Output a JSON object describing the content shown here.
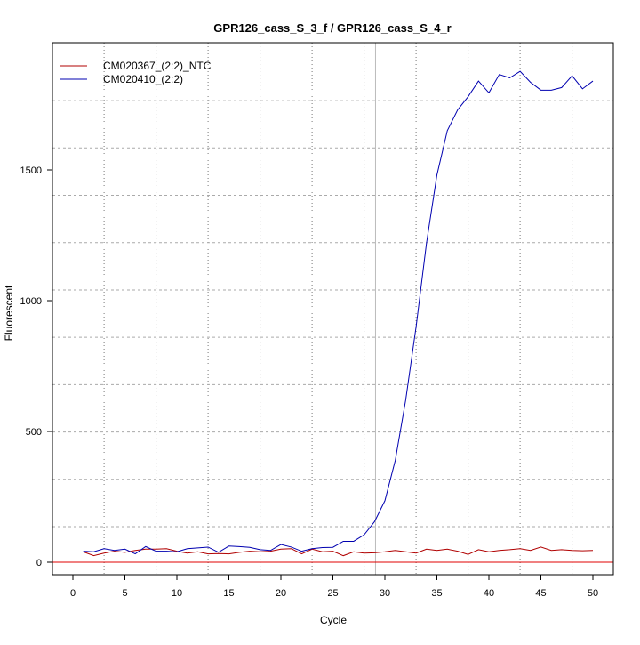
{
  "chart_data": {
    "type": "line",
    "title": "GPR126_cass_S_3_f / GPR126_cass_S_4_r",
    "xlabel": "Cycle",
    "ylabel": "Fluorescent",
    "xlim": [
      -1,
      51.5
    ],
    "ylim": [
      -45,
      1915
    ],
    "xticks": [
      0,
      5,
      10,
      15,
      20,
      25,
      30,
      35,
      40,
      45,
      50
    ],
    "yticks": [
      0,
      500,
      1000,
      1500
    ],
    "grid": true,
    "legend_position": "top-left",
    "threshold_cycle": 29.1,
    "baseline": 0,
    "x": [
      1,
      2,
      3,
      4,
      5,
      6,
      7,
      8,
      9,
      10,
      11,
      12,
      13,
      14,
      15,
      16,
      17,
      18,
      19,
      20,
      21,
      22,
      23,
      24,
      25,
      26,
      27,
      28,
      29,
      30,
      31,
      32,
      33,
      34,
      35,
      36,
      37,
      38,
      39,
      40,
      41,
      42,
      43,
      44,
      45,
      46,
      47,
      48,
      49,
      50
    ],
    "series": [
      {
        "name": "CM020367_(2:2)_NTC",
        "color": "#b00000",
        "values": [
          40,
          25,
          35,
          42,
          38,
          45,
          50,
          50,
          52,
          42,
          35,
          40,
          32,
          33,
          32,
          38,
          42,
          40,
          42,
          50,
          52,
          32,
          50,
          40,
          42,
          25,
          40,
          35,
          36,
          40,
          45,
          40,
          35,
          50,
          45,
          50,
          42,
          30,
          48,
          40,
          45,
          48,
          52,
          45,
          58,
          45,
          48,
          45,
          44,
          45
        ]
      },
      {
        "name": "CM020410_(2:2)",
        "color": "#0000b0",
        "values": [
          42,
          40,
          52,
          45,
          50,
          32,
          60,
          42,
          42,
          40,
          52,
          55,
          58,
          38,
          62,
          60,
          57,
          48,
          45,
          68,
          58,
          42,
          52,
          56,
          57,
          80,
          80,
          105,
          155,
          235,
          390,
          620,
          900,
          1220,
          1480,
          1650,
          1730,
          1780,
          1840,
          1795,
          1865,
          1852,
          1877,
          1835,
          1805,
          1805,
          1815,
          1860,
          1810,
          1840
        ]
      }
    ]
  }
}
